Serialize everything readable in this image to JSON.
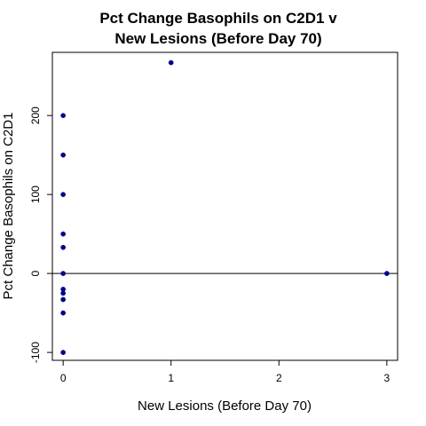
{
  "chart_data": {
    "type": "scatter",
    "title_line1": "Pct Change Basophils on C2D1 v",
    "title_line2": "New Lesions (Before Day 70)",
    "xlabel": "New Lesions (Before Day 70)",
    "ylabel": "Pct Change Basophils on C2D1",
    "xlim": [
      -0.1,
      3.1
    ],
    "ylim": [
      -110,
      280
    ],
    "xticks": [
      0,
      1,
      2,
      3
    ],
    "yticks": [
      -100,
      0,
      100,
      200
    ],
    "xtick_labels": [
      "0",
      "1",
      "2",
      "3"
    ],
    "ytick_labels": [
      "-100",
      "0",
      "100",
      "200"
    ],
    "reference_line_y": 0,
    "grid": false,
    "point_color": "#00008b",
    "points": [
      {
        "x": 0,
        "y": 200
      },
      {
        "x": 0,
        "y": 150
      },
      {
        "x": 0,
        "y": 100
      },
      {
        "x": 0,
        "y": 50
      },
      {
        "x": 0,
        "y": 33
      },
      {
        "x": 0,
        "y": 0
      },
      {
        "x": 0,
        "y": -20
      },
      {
        "x": 0,
        "y": -25
      },
      {
        "x": 0,
        "y": -33
      },
      {
        "x": 0,
        "y": -50
      },
      {
        "x": 0,
        "y": -100
      },
      {
        "x": 1,
        "y": 267
      },
      {
        "x": 3,
        "y": 0
      }
    ]
  }
}
